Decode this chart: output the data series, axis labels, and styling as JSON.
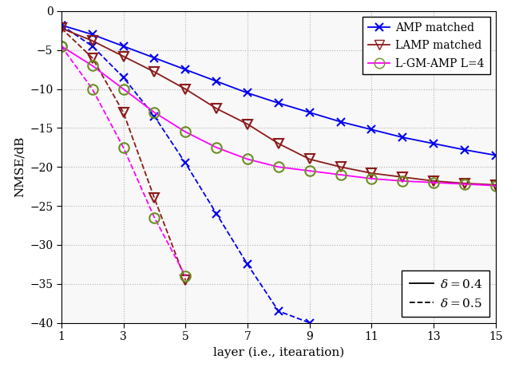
{
  "xlabel": "layer (i.e., itearation)",
  "ylabel": "NMSE/dB",
  "xlim": [
    1,
    15
  ],
  "ylim": [
    -40,
    0
  ],
  "xticks": [
    1,
    3,
    5,
    7,
    9,
    11,
    13,
    15
  ],
  "yticks": [
    0,
    -5,
    -10,
    -15,
    -20,
    -25,
    -30,
    -35,
    -40
  ],
  "layers": [
    1,
    2,
    3,
    4,
    5,
    6,
    7,
    8,
    9,
    10,
    11,
    12,
    13,
    14,
    15
  ],
  "AMP_matched_solid": [
    -1.8,
    -3.0,
    -4.5,
    -6.0,
    -7.5,
    -9.0,
    -10.5,
    -11.8,
    -13.0,
    -14.2,
    -15.2,
    -16.2,
    -17.0,
    -17.8,
    -18.5
  ],
  "AMP_matched_dashed": [
    -1.8,
    -4.5,
    -8.5,
    -13.5,
    -19.5,
    -26.0,
    -32.5,
    -38.5,
    -40.0,
    null,
    null,
    null,
    null,
    null,
    null
  ],
  "LAMP_matched_solid": [
    -2.2,
    -3.8,
    -5.8,
    -7.8,
    -10.0,
    -12.5,
    -14.5,
    -17.0,
    -19.0,
    -20.0,
    -20.8,
    -21.3,
    -21.8,
    -22.1,
    -22.3
  ],
  "LAMP_matched_dashed": [
    -2.2,
    -6.0,
    -13.0,
    -24.0,
    -34.5,
    null,
    null,
    null,
    null,
    null,
    null,
    null,
    null,
    null,
    null
  ],
  "LGMAMP_solid": [
    -4.5,
    -7.0,
    -10.0,
    -13.0,
    -15.5,
    -17.5,
    -19.0,
    -20.0,
    -20.5,
    -21.0,
    -21.5,
    -21.8,
    -22.0,
    -22.2,
    -22.4
  ],
  "LGMAMP_dashed": [
    -4.5,
    -10.0,
    -17.5,
    -26.5,
    -34.0,
    null,
    null,
    null,
    null,
    null,
    null,
    null,
    null,
    null,
    null
  ],
  "color_blue": "#0000EE",
  "color_darkred": "#8B1A1A",
  "color_magenta": "#FF00FF",
  "color_olive": "#6B8E23",
  "legend1_labels": [
    "AMP matched",
    "LAMP matched",
    "L-GM-AMP L=4"
  ],
  "legend2_label_solid": "$\\delta = 0.4$",
  "legend2_label_dashed": "$\\delta = 0.5$"
}
